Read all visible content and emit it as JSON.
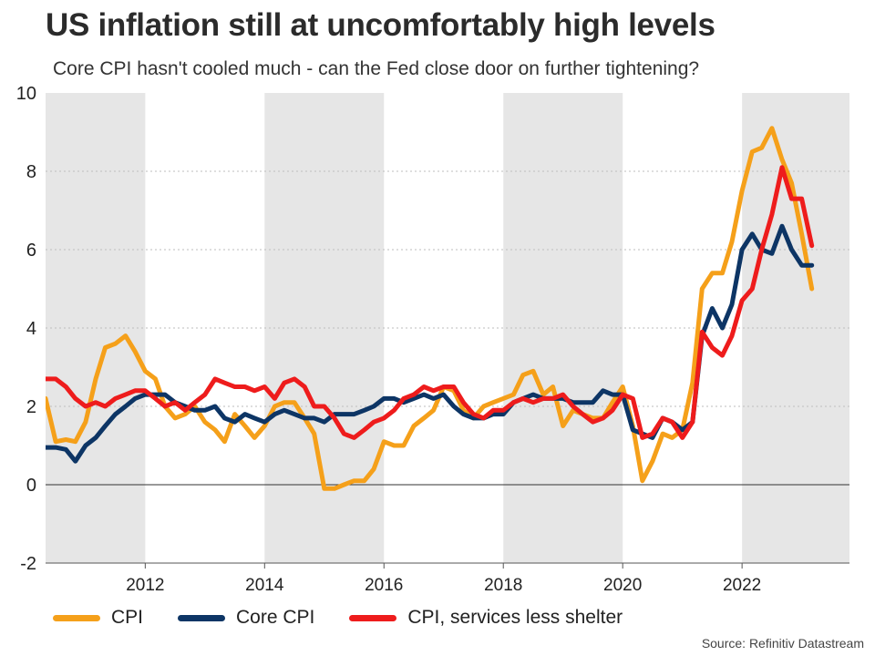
{
  "title": "US inflation still at uncomfortably high levels",
  "subtitle": "Core CPI hasn't cooled much - can the Fed close door on further tightening?",
  "source": "Source: Refinitiv Datastream",
  "colors": {
    "cpi": "#f5a01a",
    "core": "#0d3565",
    "services": "#ee1c1c",
    "band": "#e6e6e6",
    "grid": "#bdbdbd"
  },
  "chart_data": {
    "type": "line",
    "title": "US inflation still at uncomfortably high levels",
    "xlabel": "",
    "ylabel": "",
    "xlim": [
      2010.33,
      2023.8
    ],
    "ylim": [
      -2,
      10
    ],
    "yticks": [
      "-2",
      "0",
      "2",
      "4",
      "6",
      "8",
      "10"
    ],
    "xticks": [
      "2012",
      "2014",
      "2016",
      "2018",
      "2020",
      "2022"
    ],
    "shaded_periods": [
      [
        2010.33,
        2012
      ],
      [
        2014,
        2016
      ],
      [
        2018,
        2020
      ],
      [
        2022,
        2023.8
      ]
    ],
    "grid": "horizontal dotted",
    "legend_position": "bottom-left",
    "series": [
      {
        "name": "CPI",
        "x": [
          2010.33,
          2010.5,
          2010.67,
          2010.83,
          2011,
          2011.17,
          2011.33,
          2011.5,
          2011.67,
          2011.83,
          2012,
          2012.17,
          2012.33,
          2012.5,
          2012.67,
          2012.83,
          2013,
          2013.17,
          2013.33,
          2013.5,
          2013.67,
          2013.83,
          2014,
          2014.17,
          2014.33,
          2014.5,
          2014.67,
          2014.83,
          2015,
          2015.17,
          2015.33,
          2015.5,
          2015.67,
          2015.83,
          2016,
          2016.17,
          2016.33,
          2016.5,
          2016.67,
          2016.83,
          2017,
          2017.17,
          2017.33,
          2017.5,
          2017.67,
          2017.83,
          2018,
          2018.17,
          2018.33,
          2018.5,
          2018.67,
          2018.83,
          2019,
          2019.17,
          2019.33,
          2019.5,
          2019.67,
          2019.83,
          2020,
          2020.17,
          2020.33,
          2020.5,
          2020.67,
          2020.83,
          2021,
          2021.17,
          2021.33,
          2021.5,
          2021.67,
          2021.83,
          2022,
          2022.17,
          2022.33,
          2022.5,
          2022.67,
          2022.83,
          2023,
          2023.17
        ],
        "values": [
          2.2,
          1.1,
          1.15,
          1.1,
          1.6,
          2.7,
          3.5,
          3.6,
          3.8,
          3.4,
          2.9,
          2.7,
          2.0,
          1.7,
          1.8,
          2.0,
          1.6,
          1.4,
          1.1,
          1.8,
          1.5,
          1.2,
          1.5,
          2.0,
          2.1,
          2.1,
          1.7,
          1.3,
          -0.1,
          -0.1,
          0.0,
          0.1,
          0.1,
          0.4,
          1.1,
          1.0,
          1.0,
          1.5,
          1.7,
          1.9,
          2.5,
          2.4,
          1.9,
          1.7,
          2.0,
          2.1,
          2.2,
          2.3,
          2.8,
          2.9,
          2.3,
          2.5,
          1.5,
          1.9,
          1.8,
          1.7,
          1.7,
          2.1,
          2.5,
          1.5,
          0.1,
          0.6,
          1.3,
          1.2,
          1.4,
          2.6,
          5.0,
          5.4,
          5.4,
          6.2,
          7.5,
          8.5,
          8.6,
          9.1,
          8.3,
          7.7,
          6.4,
          5.0
        ]
      },
      {
        "name": "Core CPI",
        "x": [
          2010.33,
          2010.5,
          2010.67,
          2010.83,
          2011,
          2011.17,
          2011.33,
          2011.5,
          2011.67,
          2011.83,
          2012,
          2012.17,
          2012.33,
          2012.5,
          2012.67,
          2012.83,
          2013,
          2013.17,
          2013.33,
          2013.5,
          2013.67,
          2013.83,
          2014,
          2014.17,
          2014.33,
          2014.5,
          2014.67,
          2014.83,
          2015,
          2015.17,
          2015.33,
          2015.5,
          2015.67,
          2015.83,
          2016,
          2016.17,
          2016.33,
          2016.5,
          2016.67,
          2016.83,
          2017,
          2017.17,
          2017.33,
          2017.5,
          2017.67,
          2017.83,
          2018,
          2018.17,
          2018.33,
          2018.5,
          2018.67,
          2018.83,
          2019,
          2019.17,
          2019.33,
          2019.5,
          2019.67,
          2019.83,
          2020,
          2020.17,
          2020.33,
          2020.5,
          2020.67,
          2020.83,
          2021,
          2021.17,
          2021.33,
          2021.5,
          2021.67,
          2021.83,
          2022,
          2022.17,
          2022.33,
          2022.5,
          2022.67,
          2022.83,
          2023,
          2023.17
        ],
        "values": [
          0.95,
          0.95,
          0.9,
          0.6,
          1.0,
          1.2,
          1.5,
          1.8,
          2.0,
          2.2,
          2.3,
          2.3,
          2.3,
          2.1,
          2.0,
          1.9,
          1.9,
          2.0,
          1.7,
          1.6,
          1.8,
          1.7,
          1.6,
          1.8,
          1.9,
          1.8,
          1.7,
          1.7,
          1.6,
          1.8,
          1.8,
          1.8,
          1.9,
          2.0,
          2.2,
          2.2,
          2.1,
          2.2,
          2.3,
          2.2,
          2.3,
          2.0,
          1.8,
          1.7,
          1.7,
          1.8,
          1.8,
          2.1,
          2.2,
          2.3,
          2.2,
          2.2,
          2.2,
          2.1,
          2.1,
          2.1,
          2.4,
          2.3,
          2.3,
          1.4,
          1.3,
          1.2,
          1.7,
          1.6,
          1.4,
          1.6,
          3.8,
          4.5,
          4.0,
          4.6,
          6.0,
          6.4,
          6.0,
          5.9,
          6.6,
          6.0,
          5.6,
          5.6
        ]
      },
      {
        "name": "CPI, services less shelter",
        "x": [
          2010.33,
          2010.5,
          2010.67,
          2010.83,
          2011,
          2011.17,
          2011.33,
          2011.5,
          2011.67,
          2011.83,
          2012,
          2012.17,
          2012.33,
          2012.5,
          2012.67,
          2012.83,
          2013,
          2013.17,
          2013.33,
          2013.5,
          2013.67,
          2013.83,
          2014,
          2014.17,
          2014.33,
          2014.5,
          2014.67,
          2014.83,
          2015,
          2015.17,
          2015.33,
          2015.5,
          2015.67,
          2015.83,
          2016,
          2016.17,
          2016.33,
          2016.5,
          2016.67,
          2016.83,
          2017,
          2017.17,
          2017.33,
          2017.5,
          2017.67,
          2017.83,
          2018,
          2018.17,
          2018.33,
          2018.5,
          2018.67,
          2018.83,
          2019,
          2019.17,
          2019.33,
          2019.5,
          2019.67,
          2019.83,
          2020,
          2020.17,
          2020.33,
          2020.5,
          2020.67,
          2020.83,
          2021,
          2021.17,
          2021.33,
          2021.5,
          2021.67,
          2021.83,
          2022,
          2022.17,
          2022.33,
          2022.5,
          2022.67,
          2022.83,
          2023,
          2023.17
        ],
        "values": [
          2.7,
          2.7,
          2.5,
          2.2,
          2.0,
          2.1,
          2.0,
          2.2,
          2.3,
          2.4,
          2.4,
          2.2,
          2.0,
          2.1,
          1.9,
          2.1,
          2.3,
          2.7,
          2.6,
          2.5,
          2.5,
          2.4,
          2.5,
          2.2,
          2.6,
          2.7,
          2.5,
          2.0,
          2.0,
          1.7,
          1.3,
          1.2,
          1.4,
          1.6,
          1.7,
          1.9,
          2.2,
          2.3,
          2.5,
          2.4,
          2.5,
          2.5,
          2.1,
          1.8,
          1.7,
          1.9,
          1.9,
          2.1,
          2.2,
          2.1,
          2.2,
          2.2,
          2.3,
          2.0,
          1.8,
          1.6,
          1.7,
          1.9,
          2.3,
          2.2,
          1.2,
          1.3,
          1.7,
          1.6,
          1.2,
          1.6,
          3.9,
          3.5,
          3.3,
          3.8,
          4.7,
          5.0,
          6.0,
          6.9,
          8.1,
          7.3,
          7.3,
          6.1
        ]
      }
    ]
  }
}
